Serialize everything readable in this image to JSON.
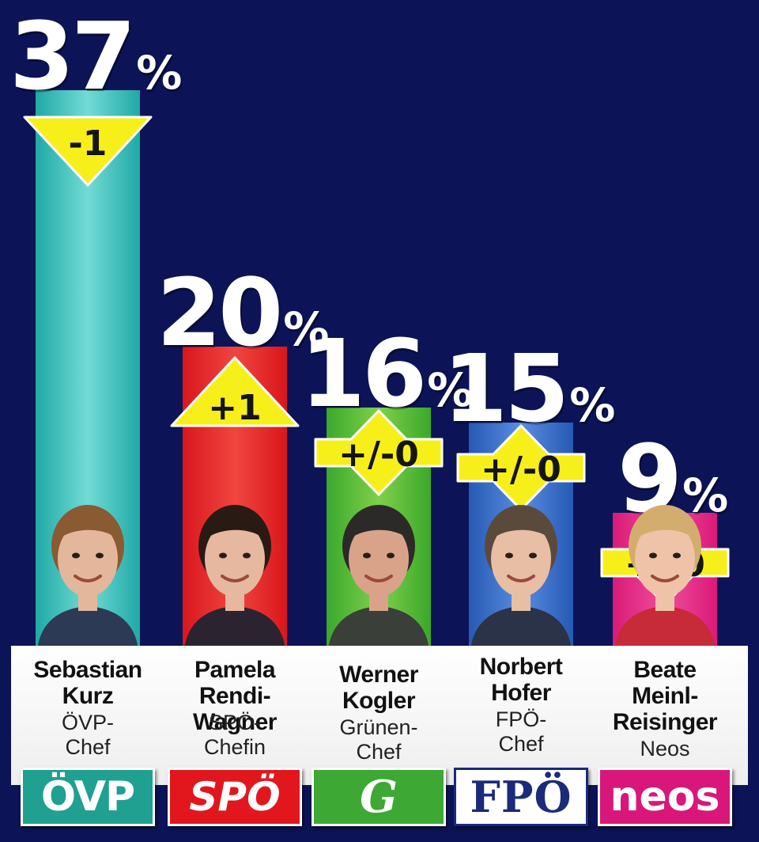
{
  "colors": {
    "background": "#0c1457",
    "badge": "#f7ef1a"
  },
  "chart_data": {
    "type": "bar",
    "categories": [
      "ÖVP",
      "SPÖ",
      "Grünen",
      "FPÖ",
      "Neos"
    ],
    "values": [
      37,
      20,
      16,
      15,
      9
    ],
    "unit": "%",
    "changes": [
      "-1",
      "+1",
      "+/-0",
      "+/-0",
      "+/-0"
    ],
    "ylim": [
      0,
      37
    ],
    "bars": [
      {
        "party": "ÖVP",
        "value": 37,
        "pct_label": "37",
        "change": "-1",
        "change_type": "down",
        "name_lines": [
          "Sebastian",
          "Kurz"
        ],
        "role_lines": [
          "ÖVP-",
          "Chef"
        ],
        "logo_text": "ÖVP",
        "logo_style": "oevp",
        "color": "#1fa9a6",
        "color_light": "#72dbd6",
        "skin": "#e3b79b",
        "hair": "#8a5a32",
        "shirt": "#2d3a55"
      },
      {
        "party": "SPÖ",
        "value": 20,
        "pct_label": "20",
        "change": "+1",
        "change_type": "up",
        "name_lines": [
          "Pamela",
          "Rendi-Wagner"
        ],
        "role_lines": [
          "SPÖ-",
          "Chefin"
        ],
        "logo_text": "SPÖ",
        "logo_style": "spoe",
        "color": "#d9161d",
        "color_light": "#f0463f",
        "skin": "#e6b8a0",
        "hair": "#2a1a14",
        "shirt": "#2b2330"
      },
      {
        "party": "Grünen",
        "value": 16,
        "pct_label": "16",
        "change": "+/-0",
        "change_type": "both",
        "name_lines": [
          "Werner",
          "Kogler"
        ],
        "role_lines": [
          "Grünen-",
          "Chef"
        ],
        "logo_text": "G",
        "logo_style": "gruene",
        "color": "#3aa82b",
        "color_light": "#7fd04a",
        "skin": "#d9a38a",
        "hair": "#2c2a28",
        "shirt": "#3a3f3a"
      },
      {
        "party": "FPÖ",
        "value": 15,
        "pct_label": "15",
        "change": "+/-0",
        "change_type": "both",
        "name_lines": [
          "Norbert",
          "Hofer"
        ],
        "role_lines": [
          "FPÖ-",
          "Chef"
        ],
        "logo_text": "FPÖ",
        "logo_style": "fpoe",
        "color": "#2559b3",
        "color_light": "#5b8ee0",
        "skin": "#e8bea4",
        "hair": "#5a4a3c",
        "shirt": "#2a3348"
      },
      {
        "party": "Neos",
        "value": 9,
        "pct_label": "9",
        "change": "+/-0",
        "change_type": "both",
        "name_lines": [
          "Beate",
          "Meinl-",
          "Reisinger"
        ],
        "role_lines": [
          "Neos"
        ],
        "logo_text": "neos",
        "logo_style": "neos",
        "color": "#d91a78",
        "color_light": "#f04d9b",
        "skin": "#efc3a8",
        "hair": "#d3ad6e",
        "shirt": "#c72a38"
      }
    ]
  }
}
